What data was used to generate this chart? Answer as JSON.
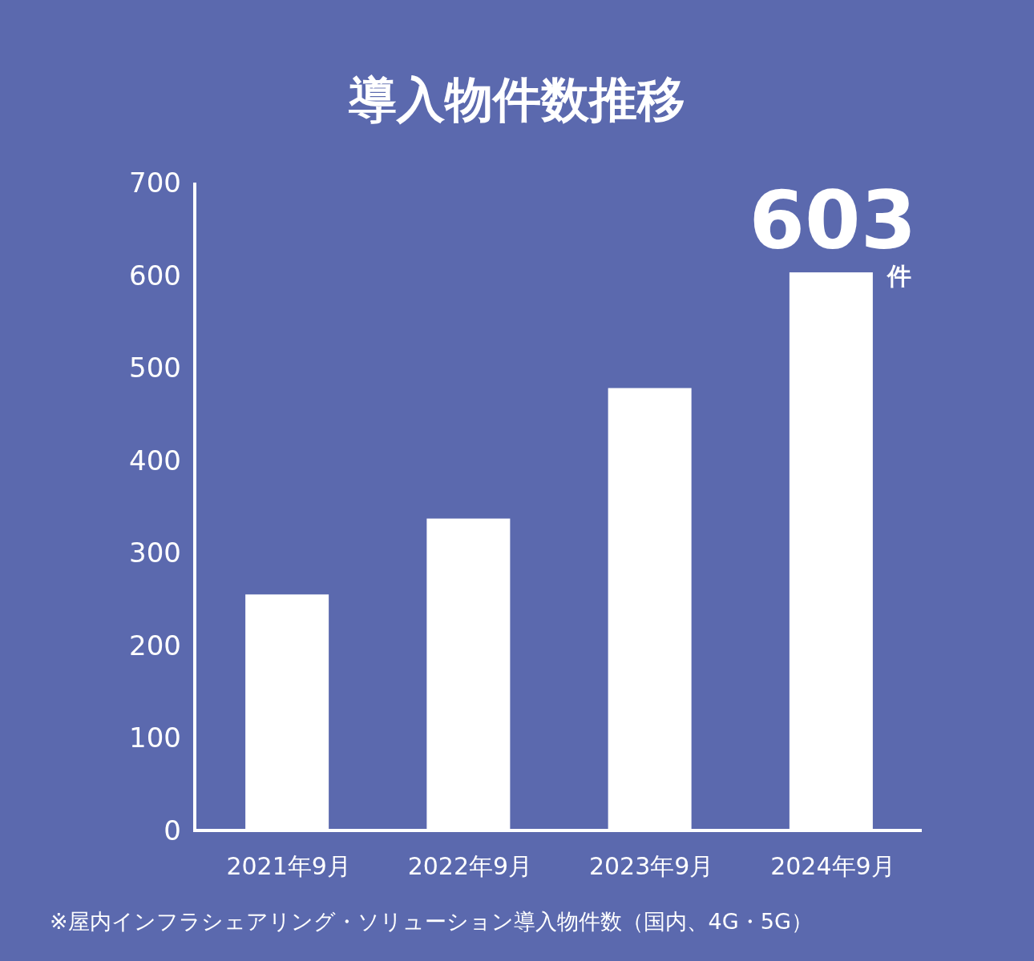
{
  "chart_data": {
    "type": "bar",
    "title": "導入物件数推移",
    "categories": [
      "2021年9月",
      "2022年9月",
      "2023年9月",
      "2024年9月"
    ],
    "values": [
      255,
      337,
      478,
      603
    ],
    "value_labels": [
      null,
      null,
      null,
      "603"
    ],
    "color": "#ffffff",
    "ylim": [
      0,
      700
    ],
    "yticks": [
      0,
      100,
      200,
      300,
      400,
      500,
      600,
      700
    ],
    "annotations": [
      {
        "text": "件",
        "x": "2024年9月",
        "y": 603
      },
      "※屋内インフラシェアリング・ソリューション導入物件数（国内、4G・5G）"
    ]
  }
}
